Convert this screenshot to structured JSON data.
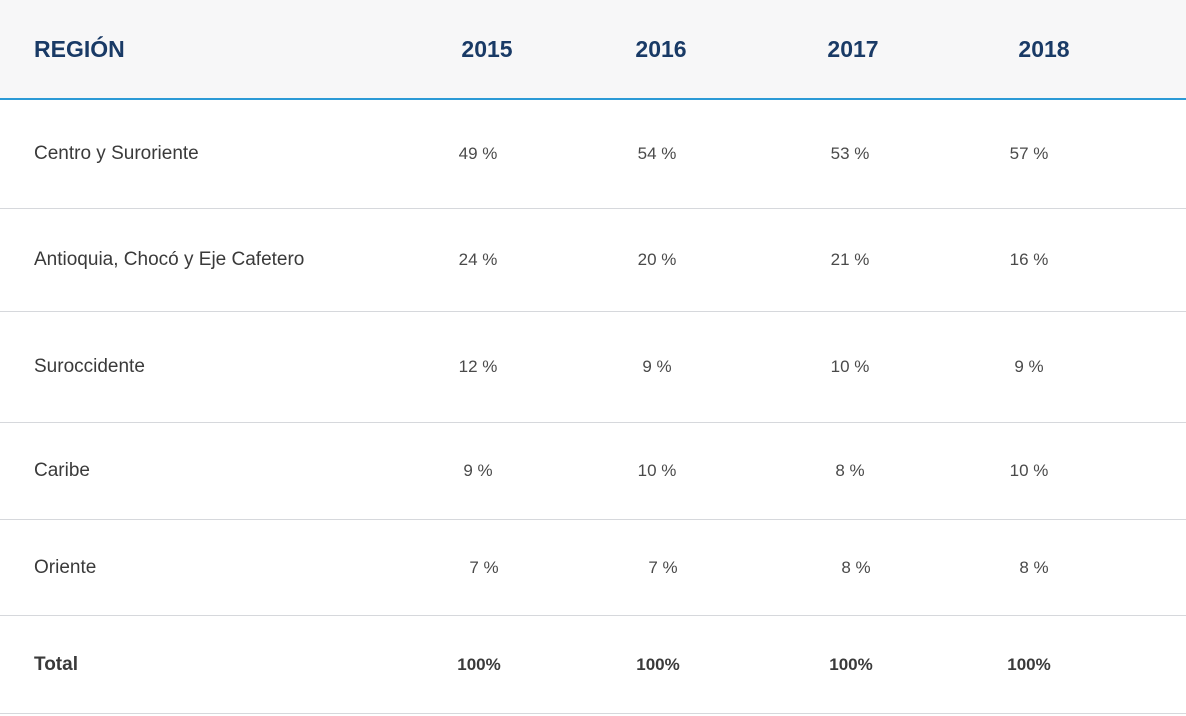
{
  "table": {
    "headers": [
      "REGIÓN",
      "2015",
      "2016",
      "2017",
      "2018"
    ],
    "rows": [
      {
        "region": "Centro y Suroriente",
        "values": [
          "49 %",
          "54 %",
          "53 %",
          "57 %"
        ]
      },
      {
        "region": "Antioquia, Chocó y Eje Cafetero",
        "values": [
          "24 %",
          "20 %",
          "21 %",
          "16 %"
        ]
      },
      {
        "region": "Suroccidente",
        "values": [
          "12 %",
          "9 %",
          "10 %",
          "9 %"
        ]
      },
      {
        "region": "Caribe",
        "values": [
          "9 %",
          "10 %",
          "8 %",
          "10 %"
        ]
      },
      {
        "region": "Oriente",
        "values": [
          "7 %",
          "7 %",
          "8 %",
          "8 %"
        ]
      }
    ],
    "total": {
      "label": "Total",
      "values": [
        "100%",
        "100%",
        "100%",
        "100%"
      ]
    }
  },
  "colors": {
    "header_text": "#193a66",
    "header_bg": "#f7f7f8",
    "accent_line": "#2b9ad6",
    "row_divider": "#d6d8dc"
  }
}
